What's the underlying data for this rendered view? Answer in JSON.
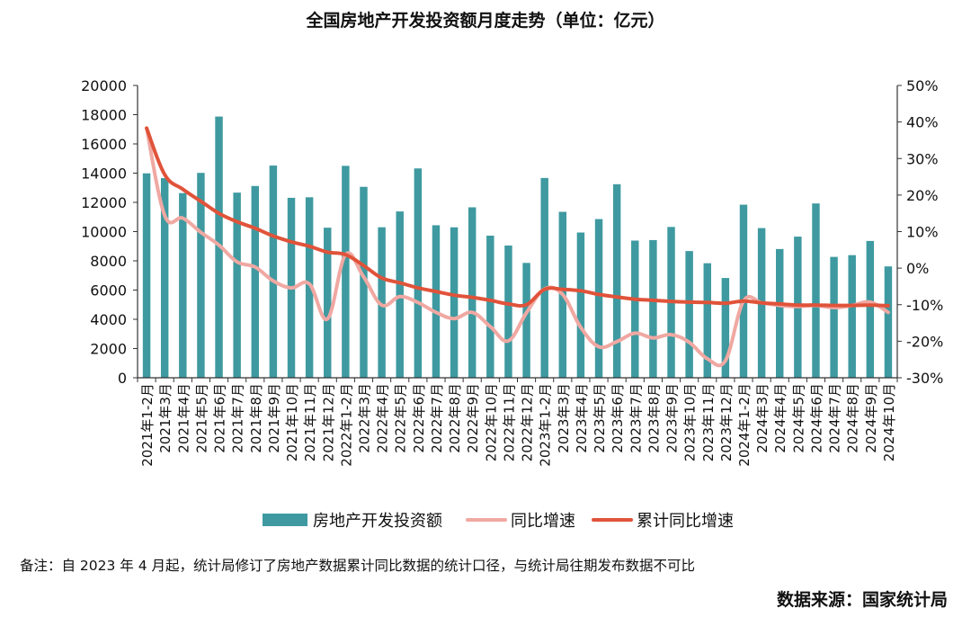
{
  "title": "全国房地产开发投资额月度走势（单位：亿元）",
  "note": "备注：自 2023 年 4 月起，统计局修订了房地产数据累计同比数据的统计口径，与统计局往期发布数据不可比",
  "source": "数据来源：国家统计局",
  "colors": {
    "bar": "#3e9aa0",
    "yoy": "#f0a8a2",
    "cum": "#e0533a",
    "axis": "#333333"
  },
  "chart_data": {
    "type": "bar",
    "categories": [
      "2021年1-2月",
      "2021年3月",
      "2021年4月",
      "2021年5月",
      "2021年6月",
      "2021年7月",
      "2021年8月",
      "2021年9月",
      "2021年10月",
      "2021年11月",
      "2021年12月",
      "2022年1-2月",
      "2022年3月",
      "2022年4月",
      "2022年5月",
      "2022年6月",
      "2022年7月",
      "2022年8月",
      "2022年9月",
      "2022年10月",
      "2022年11月",
      "2022年12月",
      "2023年1-2月",
      "2023年3月",
      "2023年4月",
      "2023年5月",
      "2023年6月",
      "2023年7月",
      "2023年8月",
      "2023年9月",
      "2023年10月",
      "2023年11月",
      "2023年12月",
      "2024年1-2月",
      "2024年3月",
      "2024年4月",
      "2024年5月",
      "2024年6月",
      "2024年7月",
      "2024年8月",
      "2024年9月",
      "2024年10月"
    ],
    "series": [
      {
        "name": "房地产开发投资额",
        "axis": "left",
        "kind": "bar",
        "values": [
          13986,
          13659,
          12634,
          14017,
          17871,
          12667,
          13120,
          14518,
          12313,
          12350,
          10267,
          14499,
          13064,
          10298,
          11379,
          14323,
          10435,
          10295,
          11662,
          9722,
          9047,
          7857,
          13669,
          11353,
          9938,
          10857,
          13242,
          9386,
          9420,
          10319,
          8669,
          7837,
          6826,
          11842,
          10240,
          8808,
          9656,
          11925,
          8270,
          8389,
          9360,
          7618
        ]
      },
      {
        "name": "同比增速",
        "axis": "right",
        "kind": "line",
        "values": [
          38.3,
          14.4,
          13.7,
          9.8,
          6.3,
          1.7,
          0.3,
          -3.5,
          -5.4,
          -4.3,
          -13.9,
          3.7,
          -2.4,
          -10.1,
          -7.8,
          -9.4,
          -12.1,
          -13.8,
          -12.1,
          -16.0,
          -19.9,
          -12.2,
          -5.7,
          -7.2,
          -16.2,
          -21.5,
          -20.1,
          -17.8,
          -19.1,
          -18.2,
          -20.3,
          -24.8,
          -25.3,
          -9.0,
          -9.5,
          -10.2,
          -10.5,
          -10.2,
          -10.8,
          -10.2,
          -9.3,
          -12.1
        ]
      },
      {
        "name": "累计同比增速",
        "axis": "right",
        "kind": "line",
        "values": [
          38.3,
          25.6,
          21.6,
          18.3,
          15.0,
          12.7,
          10.9,
          8.8,
          7.2,
          6.0,
          4.4,
          3.7,
          0.7,
          -2.7,
          -4.0,
          -5.4,
          -6.4,
          -7.4,
          -8.0,
          -8.8,
          -9.8,
          -10.0,
          -5.8,
          -5.8,
          -6.2,
          -7.2,
          -7.9,
          -8.5,
          -8.8,
          -9.1,
          -9.3,
          -9.4,
          -9.6,
          -9.0,
          -9.5,
          -9.8,
          -10.1,
          -10.1,
          -10.2,
          -10.2,
          -10.1,
          -10.3
        ]
      }
    ],
    "ylim_left": [
      0,
      20000
    ],
    "yticks_left": [
      "0",
      "2000",
      "4000",
      "6000",
      "8000",
      "10000",
      "12000",
      "14000",
      "16000",
      "18000",
      "20000"
    ],
    "ylim_right": [
      -30,
      50
    ],
    "yticks_right": [
      "-30%",
      "-20%",
      "-10%",
      "0%",
      "10%",
      "20%",
      "30%",
      "40%",
      "50%"
    ],
    "legend_position": "bottom",
    "grid": false
  }
}
